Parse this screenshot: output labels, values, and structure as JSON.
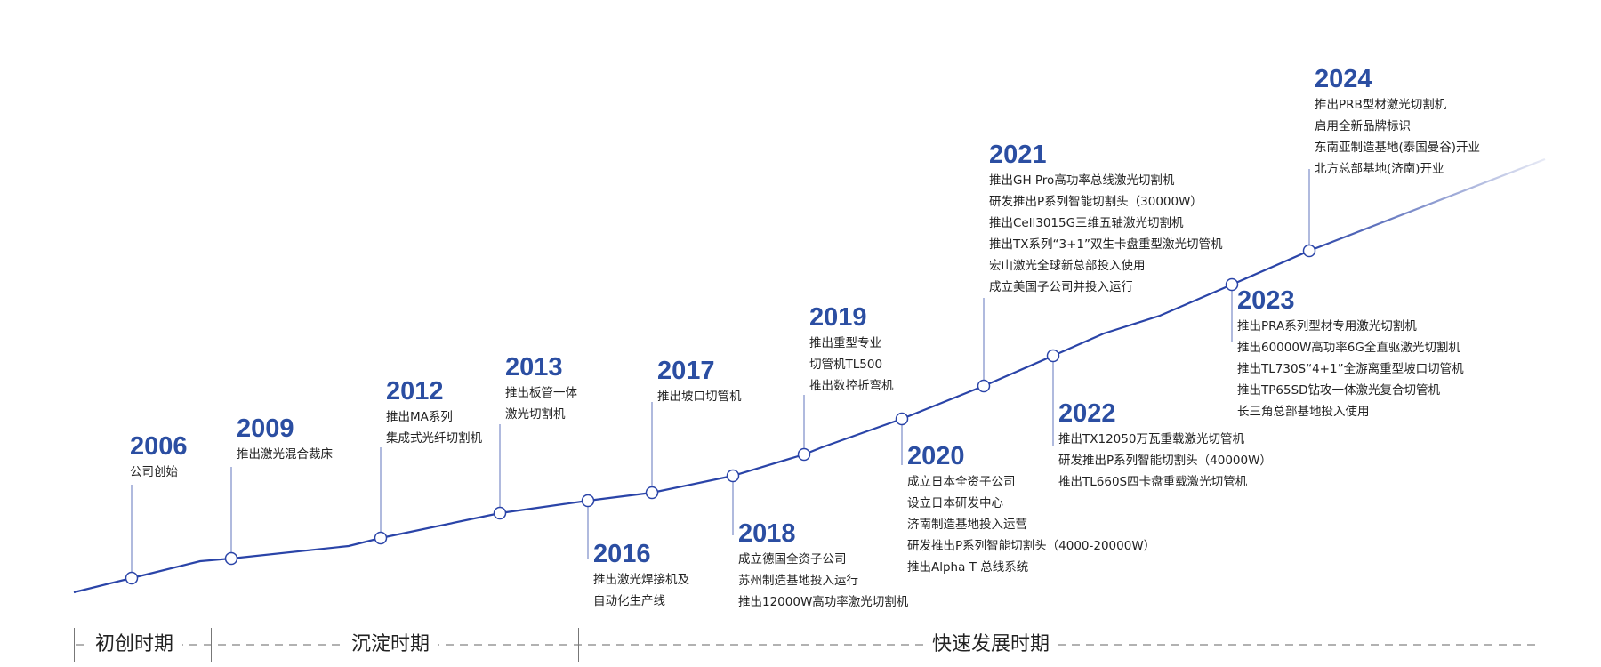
{
  "colors": {
    "accent": "#2b4ea2",
    "line": "#2a44a8",
    "connector": "#7b8cc8",
    "dash": "#999999"
  },
  "events": [
    {
      "year": "2006",
      "items": [
        "公司创始"
      ]
    },
    {
      "year": "2009",
      "items": [
        "推出激光混合裁床"
      ]
    },
    {
      "year": "2012",
      "items": [
        "推出MA系列",
        "集成式光纤切割机"
      ]
    },
    {
      "year": "2013",
      "items": [
        "推出板管一体",
        "激光切割机"
      ]
    },
    {
      "year": "2016",
      "items": [
        "推出激光焊接机及",
        "自动化生产线"
      ]
    },
    {
      "year": "2017",
      "items": [
        "推出坡口切管机"
      ]
    },
    {
      "year": "2018",
      "items": [
        "成立德国全资子公司",
        "苏州制造基地投入运行",
        "推出12000W高功率激光切割机"
      ]
    },
    {
      "year": "2019",
      "items": [
        "推出重型专业",
        "切管机TL500",
        "推出数控折弯机"
      ]
    },
    {
      "year": "2020",
      "items": [
        "成立日本全资子公司",
        "设立日本研发中心",
        "济南制造基地投入运营",
        "研发推出P系列智能切割头（4000-20000W）",
        "推出Alpha T 总线系统"
      ]
    },
    {
      "year": "2021",
      "items": [
        "推出GH Pro高功率总线激光切割机",
        "研发推出P系列智能切割头（30000W）",
        "推出Cell3015G三维五轴激光切割机",
        "推出TX系列“3+1”双生卡盘重型激光切管机",
        "宏山激光全球新总部投入使用",
        "成立美国子公司并投入运行"
      ]
    },
    {
      "year": "2022",
      "items": [
        "推出TX12050万瓦重载激光切管机",
        "研发推出P系列智能切割头（40000W）",
        "推出TL660S四卡盘重载激光切管机"
      ]
    },
    {
      "year": "2023",
      "items": [
        "推出PRA系列型材专用激光切割机",
        "推出60000W高功率6G全直驱激光切割机",
        "推出TL730S“4+1”全游离重型坡口切管机",
        "推出TP65SD钻攻一体激光复合切管机",
        "长三角总部基地投入使用"
      ]
    },
    {
      "year": "2024",
      "items": [
        "推出PRB型材激光切割机",
        "启用全新品牌标识",
        "东南亚制造基地(泰国曼谷)开业",
        "北方总部基地(济南)开业"
      ]
    }
  ],
  "phases": [
    "初创时期",
    "沉淀时期",
    "快速发展时期"
  ]
}
